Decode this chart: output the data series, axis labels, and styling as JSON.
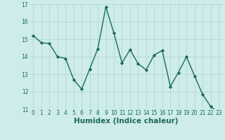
{
  "x": [
    0,
    1,
    2,
    3,
    4,
    5,
    6,
    7,
    8,
    9,
    10,
    11,
    12,
    13,
    14,
    15,
    16,
    17,
    18,
    19,
    20,
    21,
    22,
    23
  ],
  "y": [
    15.2,
    14.8,
    14.75,
    14.0,
    13.9,
    12.7,
    12.15,
    13.3,
    14.45,
    16.85,
    15.35,
    13.65,
    14.4,
    13.6,
    13.25,
    14.1,
    14.35,
    12.3,
    13.1,
    14.0,
    12.9,
    11.85,
    11.15,
    10.8
  ],
  "line_color": "#1a6b5a",
  "marker": "D",
  "marker_size": 2.2,
  "bg_color": "#ceecea",
  "grid_color": "#aed8d4",
  "tick_label_color": "#1a6b5a",
  "xlabel": "Humidex (Indice chaleur)",
  "xlabel_color": "#1a6b5a",
  "ylim": [
    11,
    17
  ],
  "xlim": [
    -0.5,
    23.5
  ],
  "yticks": [
    11,
    12,
    13,
    14,
    15,
    16,
    17
  ],
  "xticks": [
    0,
    1,
    2,
    3,
    4,
    5,
    6,
    7,
    8,
    9,
    10,
    11,
    12,
    13,
    14,
    15,
    16,
    17,
    18,
    19,
    20,
    21,
    22,
    23
  ],
  "tick_fontsize": 5.5,
  "xlabel_fontsize": 7.5,
  "linewidth": 1.0
}
